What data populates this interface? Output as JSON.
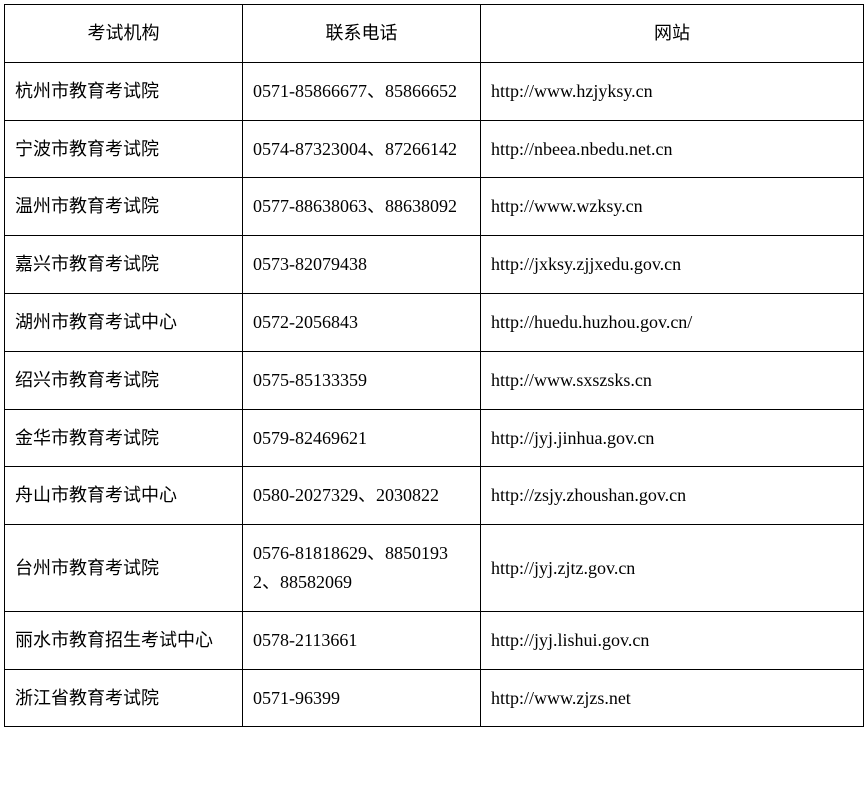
{
  "table": {
    "columns": [
      "考试机构",
      "联系电话",
      "网站"
    ],
    "rows": [
      {
        "org": "杭州市教育考试院",
        "phone": "0571-85866677、85866652",
        "site": "http://www.hzjyksy.cn"
      },
      {
        "org": "宁波市教育考试院",
        "phone": "0574-87323004、87266142",
        "site": "http://nbeea.nbedu.net.cn"
      },
      {
        "org": "温州市教育考试院",
        "phone": "0577-88638063、88638092",
        "site": "http://www.wzksy.cn"
      },
      {
        "org": "嘉兴市教育考试院",
        "phone": "0573-82079438",
        "site": "http://jxksy.zjjxedu.gov.cn"
      },
      {
        "org": "湖州市教育考试中心",
        "phone": "0572-2056843",
        "site": "http://huedu.huzhou.gov.cn/"
      },
      {
        "org": "绍兴市教育考试院",
        "phone": "0575-85133359",
        "site": "http://www.sxszsks.cn"
      },
      {
        "org": "金华市教育考试院",
        "phone": "0579-82469621",
        "site": "http://jyj.jinhua.gov.cn"
      },
      {
        "org": "舟山市教育考试中心",
        "phone": "0580-2027329、2030822",
        "site": "http://zsjy.zhoushan.gov.cn"
      },
      {
        "org": "台州市教育考试院",
        "phone": "0576-81818629、88501932、88582069",
        "site": "http://jyj.zjtz.gov.cn"
      },
      {
        "org": "丽水市教育招生考试中心",
        "phone": "0578-2113661",
        "site": "http://jyj.lishui.gov.cn"
      },
      {
        "org": "浙江省教育考试院",
        "phone": "0571-96399",
        "site": "http://www.zjzs.net"
      }
    ],
    "border_color": "#000000",
    "background_color": "#ffffff",
    "font_size_pt": 14
  }
}
